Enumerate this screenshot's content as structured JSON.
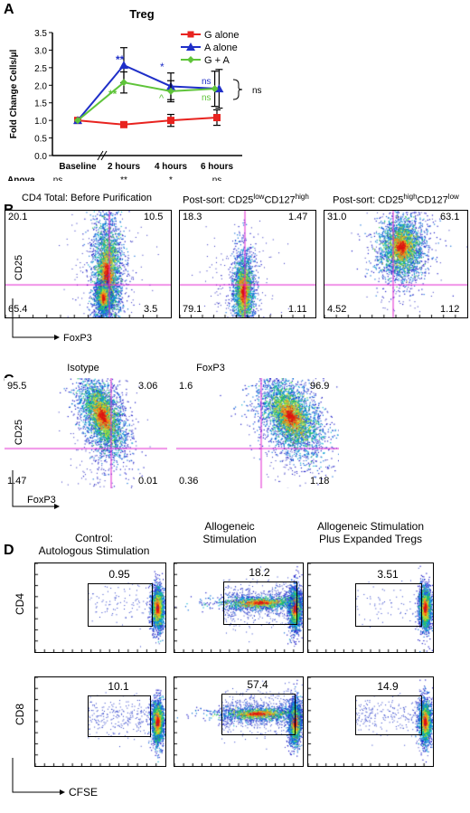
{
  "panels": {
    "A": "A",
    "B": "B",
    "C": "C",
    "D": "D"
  },
  "chart_data": [
    {
      "type": "line",
      "title": "Treg",
      "ylabel": "Fold Change Cells/µl",
      "xlabel": "",
      "categories": [
        "Baseline",
        "2 hours",
        "4 hours",
        "6 hours"
      ],
      "ylim": [
        0,
        3.5
      ],
      "yticks": [
        "0.0",
        "0.5",
        "1.0",
        "1.5",
        "2.0",
        "2.5",
        "3.0",
        "3.5"
      ],
      "series": [
        {
          "name": "G alone",
          "color": "#e8231f",
          "marker": "square",
          "values": [
            1.0,
            0.88,
            1.0,
            1.08
          ],
          "err": [
            0.04,
            0.08,
            0.17,
            0.22
          ]
        },
        {
          "name": "A alone",
          "color": "#1f2fc8",
          "marker": "triangle",
          "values": [
            1.0,
            2.57,
            1.97,
            1.9
          ],
          "err": [
            0.04,
            0.5,
            0.38,
            0.55
          ]
        },
        {
          "name": "G + A",
          "color": "#5fc43a",
          "marker": "diamond",
          "values": [
            1.0,
            2.08,
            1.83,
            1.9
          ],
          "err": [
            0.04,
            0.3,
            0.3,
            0.5
          ]
        }
      ],
      "annotations": {
        "two_hours_A": "**",
        "two_hours_GA": "**",
        "four_hours_A": "*",
        "four_hours_GA": "^",
        "six_hours_A": "ns",
        "six_hours_GA": "ns",
        "bracket": "ns"
      },
      "anova_label": "Anova",
      "anova": [
        "ns",
        "**",
        "*",
        "ns"
      ]
    },
    {
      "type": "scatter",
      "panel": "B",
      "titles": [
        "CD4 Total:  Before Purification",
        "Post-sort:  CD25",
        "Post-sort:  CD25"
      ],
      "title_sup": [
        [
          "",
          ""
        ],
        [
          "low",
          "CD127",
          "high"
        ],
        [
          "high",
          "CD127",
          "low"
        ]
      ],
      "ylabel": "CD25",
      "xlabel": "FoxP3",
      "quadrants": [
        {
          "ul": "20.1",
          "ur": "10.5",
          "ll": "65.4",
          "lr": "3.5"
        },
        {
          "ul": "18.3",
          "ur": "1.47",
          "ll": "79.1",
          "lr": "1.11"
        },
        {
          "ul": "31.0",
          "ur": "63.1",
          "ll": "4.52",
          "lr": "1.12"
        }
      ]
    },
    {
      "type": "scatter",
      "panel": "C",
      "titles": [
        "Isotype",
        "FoxP3"
      ],
      "ylabel": "CD25",
      "xlabel": "FoxP3",
      "quadrants": [
        {
          "ul": "95.5",
          "ur": "3.06",
          "ll": "1.47",
          "lr": "0.01"
        },
        {
          "ul": "1.6",
          "ur": "96.9",
          "ll": "0.36",
          "lr": "1.18"
        }
      ]
    },
    {
      "type": "scatter",
      "panel": "D",
      "titles": [
        "Control:\nAutologous Stimulation",
        "Allogeneic\nStimulation",
        "Allogeneic Stimulation\nPlus Expanded Tregs"
      ],
      "title_lines": [
        [
          "Control:",
          "Autologous Stimulation"
        ],
        [
          "Allogeneic",
          "Stimulation"
        ],
        [
          "Allogeneic Stimulation",
          "Plus Expanded Tregs"
        ]
      ],
      "row_labels": [
        "CD4",
        "CD8"
      ],
      "xlabel": "CFSE",
      "gates": [
        [
          "0.95",
          "18.2",
          "3.51"
        ],
        [
          "10.1",
          "57.4",
          "14.9"
        ]
      ]
    }
  ]
}
